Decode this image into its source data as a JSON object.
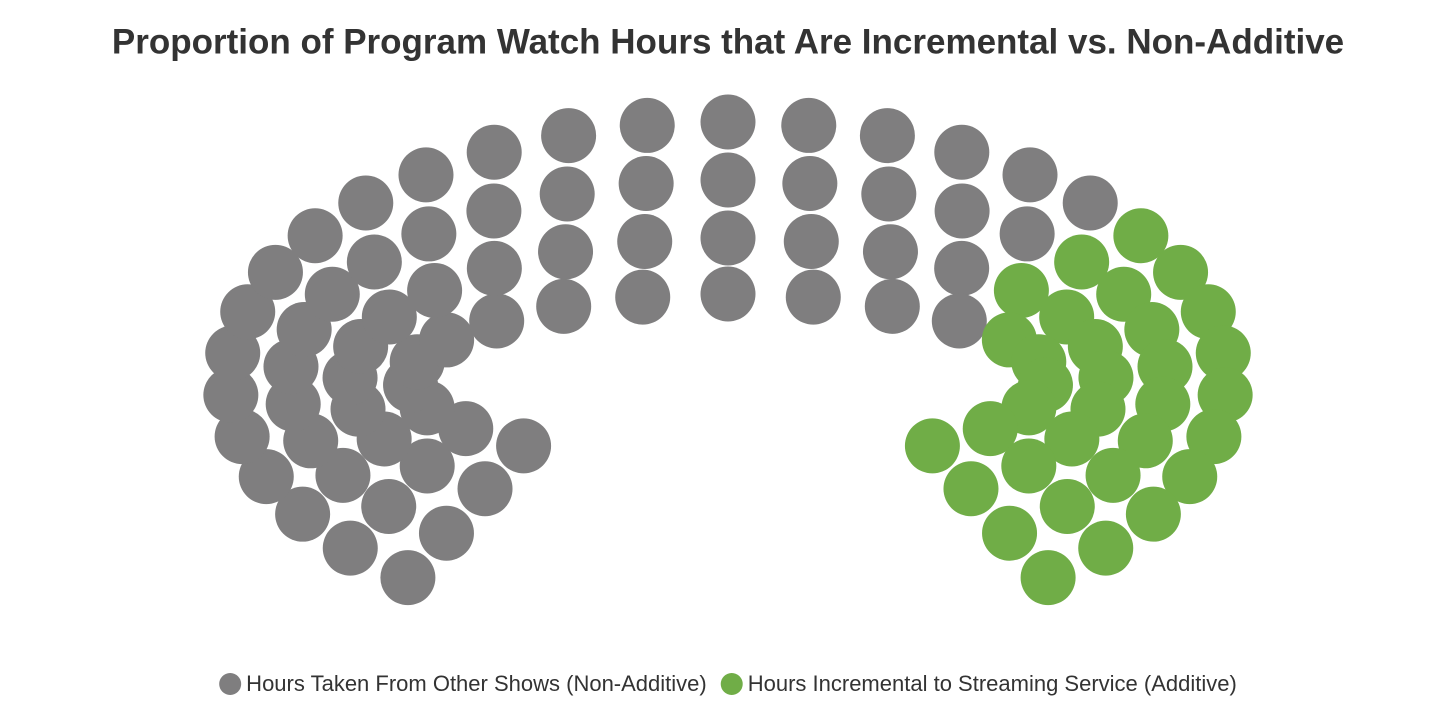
{
  "chart_data": {
    "type": "parliament",
    "title": "Proportion of Program Watch Hours that Are Incremental vs. Non-Additive",
    "series": [
      {
        "name": "Hours Taken From Other Shows (Non-Additive)",
        "color": "#7f7e7f",
        "values": [
          67
        ]
      },
      {
        "name": "Hours Incremental to Streaming Service (Additive)",
        "color": "#70ad47",
        "values": [
          33
        ]
      }
    ],
    "legend": "bottom"
  }
}
